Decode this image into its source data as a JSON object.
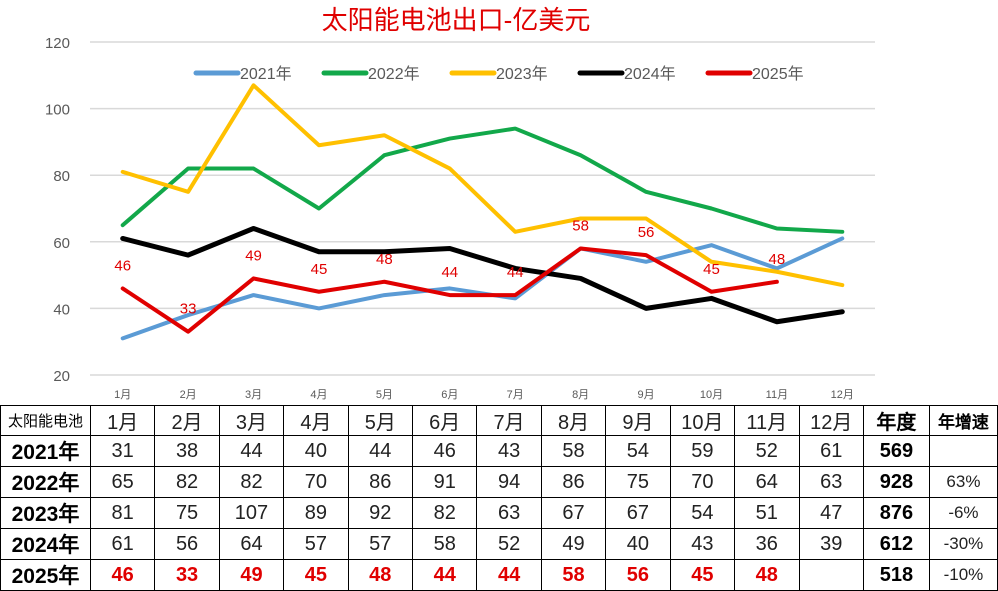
{
  "chart_data": {
    "type": "line",
    "title": "太阳能电池出口-亿美元",
    "title_color": "#e00000",
    "categories": [
      "1月",
      "2月",
      "3月",
      "4月",
      "5月",
      "6月",
      "7月",
      "8月",
      "9月",
      "10月",
      "11月",
      "12月"
    ],
    "ylim": [
      20,
      120
    ],
    "yticks": [
      20,
      40,
      60,
      80,
      100,
      120
    ],
    "grid": true,
    "legend_position": "top",
    "series": [
      {
        "name": "2021年",
        "color": "#5b9bd5",
        "values": [
          31,
          38,
          44,
          40,
          44,
          46,
          43,
          58,
          54,
          59,
          52,
          61
        ]
      },
      {
        "name": "2022年",
        "color": "#12a84a",
        "values": [
          65,
          82,
          82,
          70,
          86,
          91,
          94,
          86,
          75,
          70,
          64,
          63
        ]
      },
      {
        "name": "2023年",
        "color": "#ffc000",
        "values": [
          81,
          75,
          107,
          89,
          92,
          82,
          63,
          67,
          67,
          54,
          51,
          47
        ]
      },
      {
        "name": "2024年",
        "color": "#000000",
        "values": [
          61,
          56,
          64,
          57,
          57,
          58,
          52,
          49,
          40,
          43,
          36,
          39
        ]
      },
      {
        "name": "2025年",
        "color": "#e00000",
        "values": [
          46,
          33,
          49,
          45,
          48,
          44,
          44,
          58,
          56,
          45,
          48,
          null
        ],
        "data_labels": true
      }
    ]
  },
  "table": {
    "corner": "太阳能电池",
    "headers": [
      "1月",
      "2月",
      "3月",
      "4月",
      "5月",
      "6月",
      "7月",
      "8月",
      "9月",
      "10月",
      "11月",
      "12月"
    ],
    "total_header": "年度",
    "growth_header": "年增速",
    "rows": [
      {
        "label": "2021年",
        "values": [
          "31",
          "38",
          "44",
          "40",
          "44",
          "46",
          "43",
          "58",
          "54",
          "59",
          "52",
          "61"
        ],
        "total": "569",
        "growth": ""
      },
      {
        "label": "2022年",
        "values": [
          "65",
          "82",
          "82",
          "70",
          "86",
          "91",
          "94",
          "86",
          "75",
          "70",
          "64",
          "63"
        ],
        "total": "928",
        "growth": "63%"
      },
      {
        "label": "2023年",
        "values": [
          "81",
          "75",
          "107",
          "89",
          "92",
          "82",
          "63",
          "67",
          "67",
          "54",
          "51",
          "47"
        ],
        "total": "876",
        "growth": "-6%"
      },
      {
        "label": "2024年",
        "values": [
          "61",
          "56",
          "64",
          "57",
          "57",
          "58",
          "52",
          "49",
          "40",
          "43",
          "36",
          "39"
        ],
        "total": "612",
        "growth": "-30%"
      },
      {
        "label": "2025年",
        "values": [
          "46",
          "33",
          "49",
          "45",
          "48",
          "44",
          "44",
          "58",
          "56",
          "45",
          "48",
          ""
        ],
        "total": "518",
        "growth": "-10%"
      }
    ]
  }
}
